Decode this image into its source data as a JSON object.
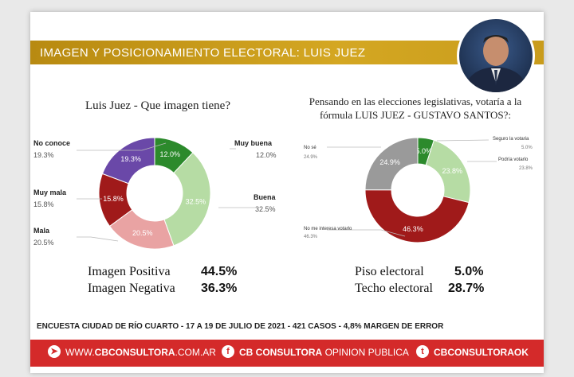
{
  "banner": {
    "title": "IMAGEN Y POSICIONAMIENTO ELECTORAL: LUIS JUEZ"
  },
  "chart_data": [
    {
      "type": "pie",
      "title": "Luis Juez - Que imagen tiene?",
      "donut": true,
      "categories": [
        "Muy buena",
        "Buena",
        "Mala",
        "Muy mala",
        "No conoce"
      ],
      "values": [
        12.0,
        32.5,
        20.5,
        15.8,
        19.3
      ],
      "value_labels": [
        "12.0%",
        "32.5%",
        "20.5%",
        "15.8%",
        "19.3%"
      ],
      "colors": [
        "#2c8a2c",
        "#b6dca4",
        "#e9a3a3",
        "#a01a1a",
        "#6a48a8"
      ]
    },
    {
      "type": "pie",
      "title": "Pensando en las elecciones legislativas, votaría a la fórmula LUIS JUEZ - GUSTAVO SANTOS?:",
      "donut": true,
      "categories": [
        "Seguro la votaría",
        "Podría votarlo",
        "No me interesa votarlo",
        "No sé"
      ],
      "values": [
        5.0,
        23.8,
        46.3,
        24.9
      ],
      "value_labels": [
        "5.0%",
        "23.8%",
        "46.3%",
        "24.9%"
      ],
      "colors": [
        "#2c8a2c",
        "#b6dca4",
        "#a01a1a",
        "#9a9a9a"
      ]
    }
  ],
  "left_labels": {
    "muy_buena": {
      "name": "Muy buena",
      "value": "12.0%"
    },
    "buena": {
      "name": "Buena",
      "value": "32.5%"
    },
    "mala": {
      "name": "Mala",
      "value": "20.5%"
    },
    "muy_mala": {
      "name": "Muy mala",
      "value": "15.8%"
    },
    "no_conoce": {
      "name": "No conoce",
      "value": "19.3%"
    }
  },
  "right_labels": {
    "seguro": {
      "name": "Seguro la votaria",
      "value": "5.0%"
    },
    "podria": {
      "name": "Podría votarlo",
      "value": "23.8%"
    },
    "no_interesa": {
      "name": "No me interesa votarlo",
      "value": "46.3%"
    },
    "no_se": {
      "name": "No sé",
      "value": "24.9%"
    }
  },
  "summary_left": {
    "positive_label": "Imagen Positiva",
    "positive_value": "44.5%",
    "negative_label": "Imagen Negativa",
    "negative_value": "36.3%"
  },
  "summary_right": {
    "floor_label": "Piso electoral",
    "floor_value": "5.0%",
    "ceiling_label": "Techo electoral",
    "ceiling_value": "28.7%"
  },
  "footnote": {
    "part1": "ENCUESTA CIUDAD DE RÍO CUARTO - 17 A 19 DE JULIO DE 2021 - ",
    "cases": "421 CASOS",
    "part2": " - 4,8% MARGEN DE ERROR"
  },
  "footer": {
    "web_bold": "CBCONSULTORA",
    "web_thin": ".COM.AR",
    "web_prefix": "WWW.",
    "fb_bold": "CB CONSULTORA",
    "fb_thin": " OPINION PUBLICA",
    "tw": "CBCONSULTORAOK"
  }
}
